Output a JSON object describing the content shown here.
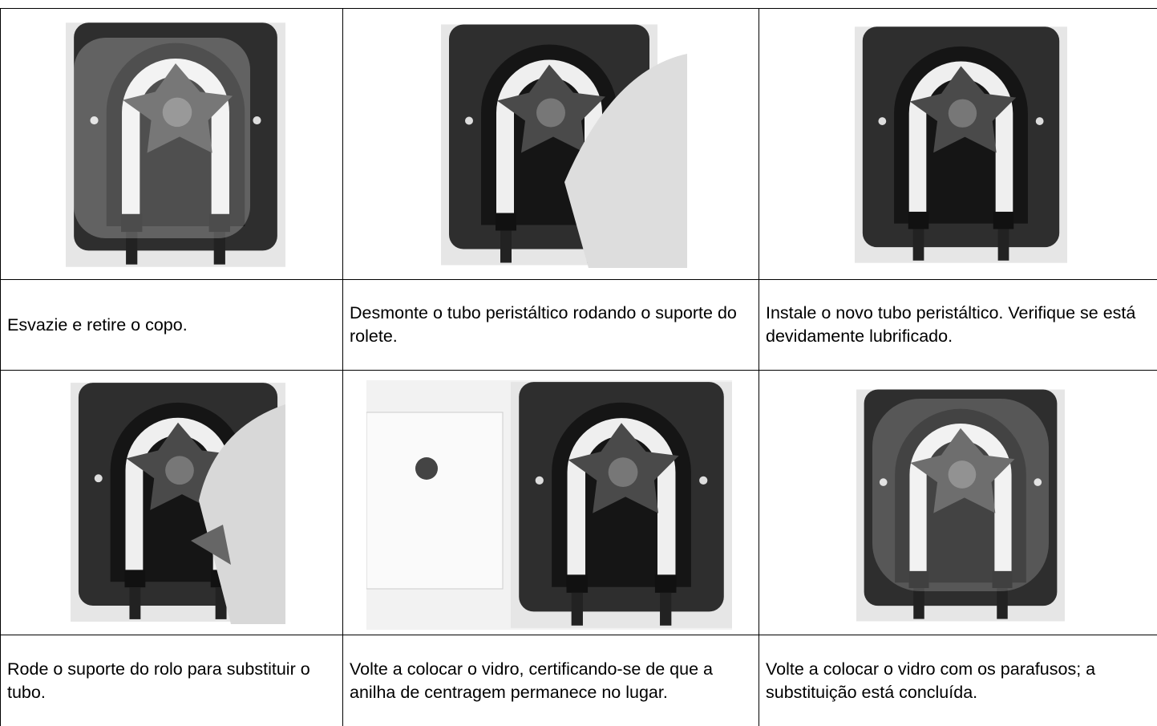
{
  "table": {
    "rows": [
      [
        "Esvazie e retire o copo.",
        "Desmonte o tubo peristáltico rodando o suporte do rolete.",
        "Instale o novo tubo peristáltico. Verifique se está devidamente lubrificado."
      ],
      [
        "Rode o suporte do rolo para substituir o tubo.",
        "Volte a colocar o vidro, certificando-se de que a anilha de centragem permanece no lugar.",
        "Volte a colocar o vidro com os parafusos; a substituição está concluída."
      ]
    ]
  }
}
